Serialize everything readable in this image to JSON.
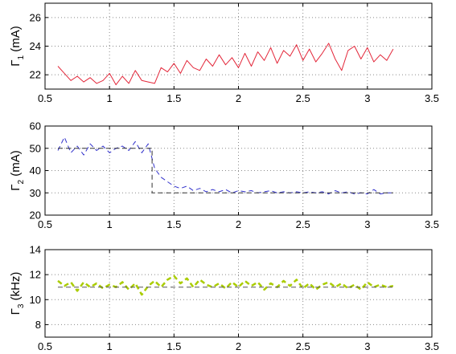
{
  "chart_data": [
    {
      "type": "line",
      "ylabel_symbol": "Γ",
      "ylabel_sub": "1",
      "ylabel_unit": " (mA)",
      "xlim": [
        0.5,
        3.5
      ],
      "ylim": [
        21,
        27
      ],
      "xticks": [
        0.5,
        1,
        1.5,
        2,
        2.5,
        3,
        3.5
      ],
      "xticklabels": [
        "0.5",
        "1",
        "1.5",
        "2",
        "2.5",
        "3",
        "3.5"
      ],
      "yticks": [
        22,
        24,
        26
      ],
      "yticklabels": [
        "22",
        "24",
        "26"
      ],
      "grid": true,
      "series": [
        {
          "color": "#e3273a",
          "style": "solid",
          "x": [
            0.6,
            0.65,
            0.7,
            0.75,
            0.8,
            0.85,
            0.9,
            0.95,
            1.0,
            1.05,
            1.1,
            1.15,
            1.2,
            1.25,
            1.3,
            1.35,
            1.4,
            1.45,
            1.5,
            1.55,
            1.6,
            1.65,
            1.7,
            1.75,
            1.8,
            1.85,
            1.9,
            1.95,
            2.0,
            2.05,
            2.1,
            2.15,
            2.2,
            2.25,
            2.3,
            2.35,
            2.4,
            2.45,
            2.5,
            2.55,
            2.6,
            2.65,
            2.7,
            2.75,
            2.8,
            2.85,
            2.9,
            2.95,
            3.0,
            3.05,
            3.1,
            3.15,
            3.2
          ],
          "y": [
            22.6,
            22.1,
            21.6,
            21.9,
            21.5,
            21.8,
            21.4,
            21.6,
            22.1,
            21.3,
            21.9,
            21.4,
            22.3,
            21.6,
            21.5,
            21.4,
            22.5,
            22.2,
            22.8,
            22.1,
            23.0,
            22.5,
            22.3,
            23.1,
            22.6,
            23.4,
            22.7,
            23.2,
            22.5,
            23.5,
            22.6,
            23.6,
            23.0,
            23.9,
            22.8,
            23.7,
            23.3,
            24.1,
            23.0,
            23.8,
            22.9,
            23.5,
            24.2,
            23.1,
            22.3,
            23.7,
            24.0,
            23.1,
            23.9,
            22.9,
            23.4,
            23.0,
            23.8
          ]
        }
      ]
    },
    {
      "type": "line",
      "ylabel_symbol": "Γ",
      "ylabel_sub": "2",
      "ylabel_unit": " (mA)",
      "xlim": [
        0.5,
        3.5
      ],
      "ylim": [
        20,
        60
      ],
      "xticks": [
        0.5,
        1,
        1.5,
        2,
        2.5,
        3,
        3.5
      ],
      "xticklabels": [
        "0.5",
        "1",
        "1.5",
        "2",
        "2.5",
        "3",
        "3.5"
      ],
      "yticks": [
        20,
        30,
        40,
        50,
        60
      ],
      "yticklabels": [
        "20",
        "30",
        "40",
        "50",
        "60"
      ],
      "grid": true,
      "series": [
        {
          "color": "#3333cc",
          "style": "dashed",
          "x": [
            0.6,
            0.65,
            0.7,
            0.75,
            0.8,
            0.85,
            0.9,
            0.95,
            1.0,
            1.05,
            1.1,
            1.15,
            1.2,
            1.25,
            1.3,
            1.35,
            1.4,
            1.45,
            1.5,
            1.55,
            1.6,
            1.65,
            1.7,
            1.75,
            1.8,
            1.85,
            1.9,
            1.95,
            2.0,
            2.05,
            2.1,
            2.15,
            2.2,
            2.25,
            2.3,
            2.35,
            2.4,
            2.45,
            2.5,
            2.55,
            2.6,
            2.65,
            2.7,
            2.75,
            2.8,
            2.85,
            2.9,
            2.95,
            3.0,
            3.05,
            3.1,
            3.15,
            3.2
          ],
          "y": [
            49,
            55,
            48,
            51,
            47,
            52,
            49,
            51,
            48,
            50,
            51,
            49,
            53,
            48,
            52,
            41,
            37,
            35,
            33,
            32,
            33,
            31,
            32,
            30.5,
            31.5,
            30.5,
            31.5,
            30,
            31,
            30.5,
            31,
            30,
            30.5,
            31,
            30,
            30.5,
            30,
            30.5,
            30,
            30.5,
            30,
            30.5,
            29.5,
            31,
            30,
            30.5,
            29.5,
            30,
            29.5,
            31.5,
            29.5,
            30,
            30
          ]
        },
        {
          "color": "#333333",
          "style": "dashed",
          "x": [
            0.6,
            1.33,
            1.33,
            3.2
          ],
          "y": [
            50,
            50,
            30,
            30
          ]
        }
      ]
    },
    {
      "type": "line",
      "ylabel_symbol": "Γ",
      "ylabel_sub": "3",
      "ylabel_unit": " (kHz)",
      "xlim": [
        0.5,
        3.5
      ],
      "ylim": [
        7,
        14
      ],
      "xticks": [
        0.5,
        1,
        1.5,
        2,
        2.5,
        3,
        3.5
      ],
      "xticklabels": [
        "0.5",
        "1",
        "1.5",
        "2",
        "2.5",
        "3",
        "3.5"
      ],
      "yticks": [
        8,
        10,
        12,
        14
      ],
      "yticklabels": [
        "8",
        "10",
        "12",
        "14"
      ],
      "grid": true,
      "series": [
        {
          "color": "#aacc00",
          "style": "dashed",
          "x": [
            0.6,
            0.65,
            0.7,
            0.75,
            0.8,
            0.85,
            0.9,
            0.95,
            1.0,
            1.05,
            1.1,
            1.15,
            1.2,
            1.25,
            1.3,
            1.35,
            1.4,
            1.45,
            1.5,
            1.55,
            1.6,
            1.65,
            1.7,
            1.75,
            1.8,
            1.85,
            1.9,
            1.95,
            2.0,
            2.05,
            2.1,
            2.15,
            2.2,
            2.25,
            2.3,
            2.35,
            2.4,
            2.45,
            2.5,
            2.55,
            2.6,
            2.65,
            2.7,
            2.75,
            2.8,
            2.85,
            2.9,
            2.95,
            3.0,
            3.05,
            3.1,
            3.15,
            3.2
          ],
          "y": [
            11.5,
            11.1,
            11.4,
            10.7,
            11.4,
            11.0,
            11.3,
            10.9,
            11.2,
            11.0,
            11.4,
            10.8,
            11.3,
            10.4,
            11.1,
            11.5,
            11.0,
            11.6,
            11.9,
            11.3,
            11.7,
            11.0,
            11.6,
            11.2,
            11.0,
            11.3,
            10.9,
            11.4,
            11.0,
            11.5,
            11.1,
            11.4,
            10.8,
            11.3,
            11.0,
            11.5,
            11.1,
            11.6,
            10.9,
            11.3,
            10.8,
            11.2,
            11.4,
            11.0,
            11.3,
            10.9,
            11.2,
            10.8,
            11.4,
            11.0,
            11.2,
            11.0,
            11.1
          ]
        },
        {
          "color": "#555555",
          "style": "dashed",
          "x": [
            0.6,
            3.2
          ],
          "y": [
            11,
            11
          ]
        }
      ]
    }
  ]
}
